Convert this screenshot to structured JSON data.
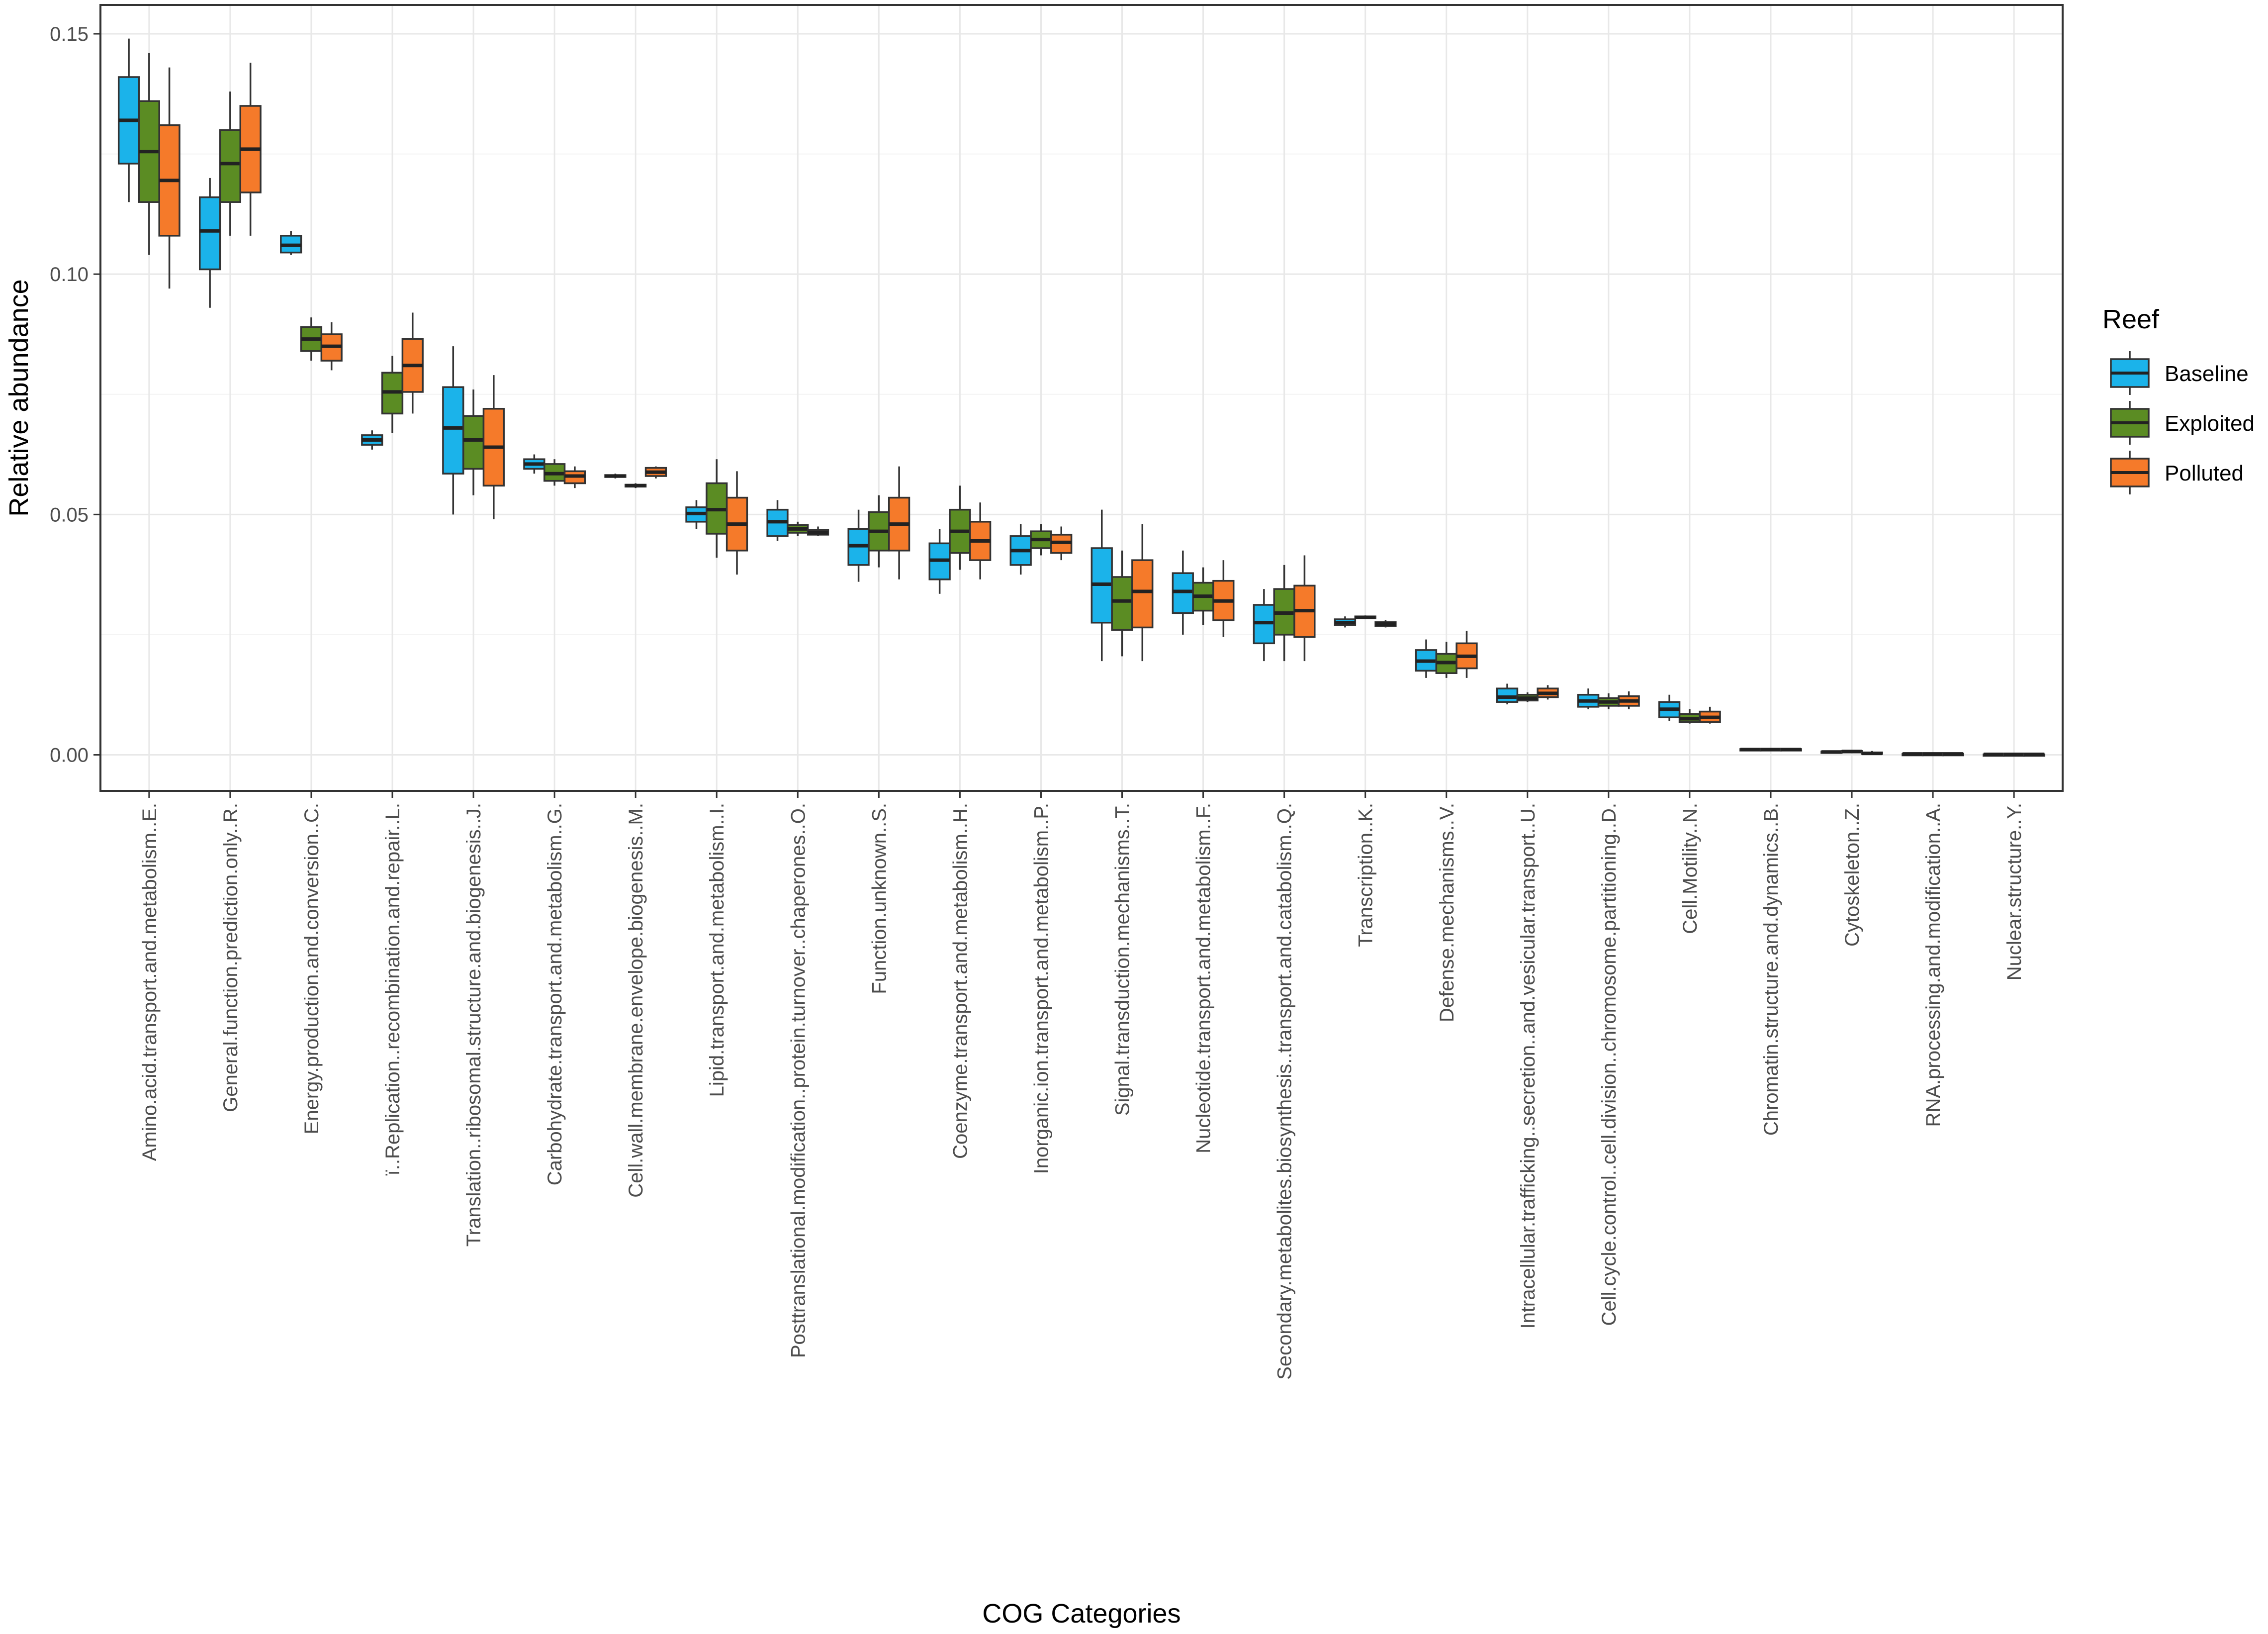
{
  "chart_data": {
    "type": "boxplot",
    "xlabel": "COG Categories",
    "ylabel": "Relative abundance",
    "ylim": [
      -0.0075,
      0.156
    ],
    "yticks": [
      0.0,
      0.05,
      0.1,
      0.15
    ],
    "ytick_labels": [
      "0.00",
      "0.05",
      "0.10",
      "0.15"
    ],
    "grid": true,
    "legend": {
      "title": "Reef",
      "position": "right"
    },
    "series": [
      {
        "name": "Baseline",
        "color": "#1BB3EA"
      },
      {
        "name": "Exploited",
        "color": "#5B8C23"
      },
      {
        "name": "Polluted",
        "color": "#F57A2A"
      }
    ],
    "categories": [
      {
        "label": "Amino.acid.transport.and.metabolism..E.",
        "boxes": [
          {
            "series": "Baseline",
            "min": 0.115,
            "q1": 0.123,
            "median": 0.132,
            "q3": 0.141,
            "max": 0.149
          },
          {
            "series": "Exploited",
            "min": 0.104,
            "q1": 0.115,
            "median": 0.1255,
            "q3": 0.136,
            "max": 0.146
          },
          {
            "series": "Polluted",
            "min": 0.097,
            "q1": 0.108,
            "median": 0.1195,
            "q3": 0.131,
            "max": 0.143
          }
        ]
      },
      {
        "label": "General.function.prediction.only..R.",
        "boxes": [
          {
            "series": "Baseline",
            "min": 0.093,
            "q1": 0.101,
            "median": 0.109,
            "q3": 0.116,
            "max": 0.12
          },
          {
            "series": "Exploited",
            "min": 0.108,
            "q1": 0.115,
            "median": 0.123,
            "q3": 0.13,
            "max": 0.138
          },
          {
            "series": "Polluted",
            "min": 0.108,
            "q1": 0.117,
            "median": 0.126,
            "q3": 0.135,
            "max": 0.144
          }
        ]
      },
      {
        "label": "Energy.production.and.conversion..C.",
        "boxes": [
          {
            "series": "Baseline",
            "min": 0.104,
            "q1": 0.1045,
            "median": 0.106,
            "q3": 0.108,
            "max": 0.109
          },
          {
            "series": "Exploited",
            "min": 0.082,
            "q1": 0.084,
            "median": 0.0865,
            "q3": 0.089,
            "max": 0.091
          },
          {
            "series": "Polluted",
            "min": 0.08,
            "q1": 0.082,
            "median": 0.085,
            "q3": 0.0875,
            "max": 0.09
          }
        ]
      },
      {
        "label": "ï..Replication..recombination.and.repair..L.",
        "boxes": [
          {
            "series": "Baseline",
            "min": 0.0635,
            "q1": 0.0645,
            "median": 0.0655,
            "q3": 0.0665,
            "max": 0.0675
          },
          {
            "series": "Exploited",
            "min": 0.067,
            "q1": 0.071,
            "median": 0.0755,
            "q3": 0.0795,
            "max": 0.083
          },
          {
            "series": "Polluted",
            "min": 0.071,
            "q1": 0.0755,
            "median": 0.081,
            "q3": 0.0865,
            "max": 0.092
          }
        ]
      },
      {
        "label": "Translation..ribosomal.structure.and.biogenesis..J.",
        "boxes": [
          {
            "series": "Baseline",
            "min": 0.05,
            "q1": 0.0585,
            "median": 0.068,
            "q3": 0.0765,
            "max": 0.085
          },
          {
            "series": "Exploited",
            "min": 0.054,
            "q1": 0.0595,
            "median": 0.0655,
            "q3": 0.0705,
            "max": 0.076
          },
          {
            "series": "Polluted",
            "min": 0.049,
            "q1": 0.056,
            "median": 0.064,
            "q3": 0.072,
            "max": 0.079
          }
        ]
      },
      {
        "label": "Carbohydrate.transport.and.metabolism..G.",
        "boxes": [
          {
            "series": "Baseline",
            "min": 0.0585,
            "q1": 0.0595,
            "median": 0.0605,
            "q3": 0.0615,
            "max": 0.0625
          },
          {
            "series": "Exploited",
            "min": 0.056,
            "q1": 0.057,
            "median": 0.0585,
            "q3": 0.0605,
            "max": 0.0615
          },
          {
            "series": "Polluted",
            "min": 0.0555,
            "q1": 0.0565,
            "median": 0.058,
            "q3": 0.059,
            "max": 0.06
          }
        ]
      },
      {
        "label": "Cell.wall.membrane.envelope.biogenesis..M.",
        "boxes": [
          {
            "series": "Baseline",
            "min": 0.0575,
            "q1": 0.0578,
            "median": 0.058,
            "q3": 0.0582,
            "max": 0.0585
          },
          {
            "series": "Exploited",
            "min": 0.0555,
            "q1": 0.0558,
            "median": 0.056,
            "q3": 0.0562,
            "max": 0.0565
          },
          {
            "series": "Polluted",
            "min": 0.0575,
            "q1": 0.058,
            "median": 0.0588,
            "q3": 0.0597,
            "max": 0.06
          }
        ]
      },
      {
        "label": "Lipid.transport.and.metabolism..I.",
        "boxes": [
          {
            "series": "Baseline",
            "min": 0.047,
            "q1": 0.0485,
            "median": 0.0502,
            "q3": 0.0515,
            "max": 0.053
          },
          {
            "series": "Exploited",
            "min": 0.041,
            "q1": 0.046,
            "median": 0.051,
            "q3": 0.0565,
            "max": 0.0615
          },
          {
            "series": "Polluted",
            "min": 0.0375,
            "q1": 0.0425,
            "median": 0.048,
            "q3": 0.0535,
            "max": 0.059
          }
        ]
      },
      {
        "label": "Posttranslational.modification..protein.turnover..chaperones..O.",
        "boxes": [
          {
            "series": "Baseline",
            "min": 0.0445,
            "q1": 0.0455,
            "median": 0.0485,
            "q3": 0.051,
            "max": 0.053
          },
          {
            "series": "Exploited",
            "min": 0.0455,
            "q1": 0.0462,
            "median": 0.047,
            "q3": 0.0478,
            "max": 0.0485
          },
          {
            "series": "Polluted",
            "min": 0.0455,
            "q1": 0.0458,
            "median": 0.0462,
            "q3": 0.0468,
            "max": 0.0475
          }
        ]
      },
      {
        "label": "Function.unknown..S.",
        "boxes": [
          {
            "series": "Baseline",
            "min": 0.036,
            "q1": 0.0395,
            "median": 0.0435,
            "q3": 0.047,
            "max": 0.051
          },
          {
            "series": "Exploited",
            "min": 0.039,
            "q1": 0.0425,
            "median": 0.0465,
            "q3": 0.0505,
            "max": 0.054
          },
          {
            "series": "Polluted",
            "min": 0.0365,
            "q1": 0.0425,
            "median": 0.048,
            "q3": 0.0535,
            "max": 0.06
          }
        ]
      },
      {
        "label": "Coenzyme.transport.and.metabolism..H.",
        "boxes": [
          {
            "series": "Baseline",
            "min": 0.0335,
            "q1": 0.0365,
            "median": 0.0405,
            "q3": 0.044,
            "max": 0.047
          },
          {
            "series": "Exploited",
            "min": 0.0385,
            "q1": 0.042,
            "median": 0.0465,
            "q3": 0.051,
            "max": 0.056
          },
          {
            "series": "Polluted",
            "min": 0.0365,
            "q1": 0.0405,
            "median": 0.0445,
            "q3": 0.0485,
            "max": 0.0525
          }
        ]
      },
      {
        "label": "Inorganic.ion.transport.and.metabolism..P.",
        "boxes": [
          {
            "series": "Baseline",
            "min": 0.0375,
            "q1": 0.0395,
            "median": 0.0425,
            "q3": 0.0455,
            "max": 0.048
          },
          {
            "series": "Exploited",
            "min": 0.0415,
            "q1": 0.043,
            "median": 0.0448,
            "q3": 0.0465,
            "max": 0.048
          },
          {
            "series": "Polluted",
            "min": 0.0405,
            "q1": 0.042,
            "median": 0.0442,
            "q3": 0.0458,
            "max": 0.0475
          }
        ]
      },
      {
        "label": "Signal.transduction.mechanisms..T.",
        "boxes": [
          {
            "series": "Baseline",
            "min": 0.0195,
            "q1": 0.0275,
            "median": 0.0355,
            "q3": 0.043,
            "max": 0.051
          },
          {
            "series": "Exploited",
            "min": 0.0205,
            "q1": 0.026,
            "median": 0.032,
            "q3": 0.037,
            "max": 0.0425
          },
          {
            "series": "Polluted",
            "min": 0.0195,
            "q1": 0.0265,
            "median": 0.034,
            "q3": 0.0405,
            "max": 0.048
          }
        ]
      },
      {
        "label": "Nucleotide.transport.and.metabolism..F.",
        "boxes": [
          {
            "series": "Baseline",
            "min": 0.025,
            "q1": 0.0295,
            "median": 0.034,
            "q3": 0.0378,
            "max": 0.0425
          },
          {
            "series": "Exploited",
            "min": 0.027,
            "q1": 0.03,
            "median": 0.033,
            "q3": 0.0358,
            "max": 0.039
          },
          {
            "series": "Polluted",
            "min": 0.0245,
            "q1": 0.028,
            "median": 0.032,
            "q3": 0.0362,
            "max": 0.0405
          }
        ]
      },
      {
        "label": "Secondary.metabolites.biosynthesis..transport.and.catabolism..Q.",
        "boxes": [
          {
            "series": "Baseline",
            "min": 0.0195,
            "q1": 0.0232,
            "median": 0.0275,
            "q3": 0.0312,
            "max": 0.0345
          },
          {
            "series": "Exploited",
            "min": 0.0195,
            "q1": 0.025,
            "median": 0.0295,
            "q3": 0.0345,
            "max": 0.0395
          },
          {
            "series": "Polluted",
            "min": 0.0195,
            "q1": 0.0245,
            "median": 0.03,
            "q3": 0.0352,
            "max": 0.0415
          }
        ]
      },
      {
        "label": "Transcription..K.",
        "boxes": [
          {
            "series": "Baseline",
            "min": 0.0265,
            "q1": 0.027,
            "median": 0.0275,
            "q3": 0.0282,
            "max": 0.0288
          },
          {
            "series": "Exploited",
            "min": 0.0282,
            "q1": 0.0284,
            "median": 0.0286,
            "q3": 0.0288,
            "max": 0.029
          },
          {
            "series": "Polluted",
            "min": 0.0265,
            "q1": 0.0268,
            "median": 0.0272,
            "q3": 0.0276,
            "max": 0.028
          }
        ]
      },
      {
        "label": "Defense.mechanisms..V.",
        "boxes": [
          {
            "series": "Baseline",
            "min": 0.016,
            "q1": 0.0175,
            "median": 0.0195,
            "q3": 0.0218,
            "max": 0.024
          },
          {
            "series": "Exploited",
            "min": 0.016,
            "q1": 0.017,
            "median": 0.0192,
            "q3": 0.021,
            "max": 0.0235
          },
          {
            "series": "Polluted",
            "min": 0.016,
            "q1": 0.018,
            "median": 0.0205,
            "q3": 0.0232,
            "max": 0.0258
          }
        ]
      },
      {
        "label": "Intracellular.trafficking..secretion..and.vesicular.transport..U.",
        "boxes": [
          {
            "series": "Baseline",
            "min": 0.0105,
            "q1": 0.011,
            "median": 0.012,
            "q3": 0.0138,
            "max": 0.0148
          },
          {
            "series": "Exploited",
            "min": 0.011,
            "q1": 0.0113,
            "median": 0.0118,
            "q3": 0.0125,
            "max": 0.013
          },
          {
            "series": "Polluted",
            "min": 0.0115,
            "q1": 0.012,
            "median": 0.0128,
            "q3": 0.0138,
            "max": 0.0145
          }
        ]
      },
      {
        "label": "Cell.cycle.control..cell.division..chromosome.partitioning..D.",
        "boxes": [
          {
            "series": "Baseline",
            "min": 0.0095,
            "q1": 0.01,
            "median": 0.0112,
            "q3": 0.0125,
            "max": 0.0138
          },
          {
            "series": "Exploited",
            "min": 0.0095,
            "q1": 0.0102,
            "median": 0.011,
            "q3": 0.0118,
            "max": 0.0128
          },
          {
            "series": "Polluted",
            "min": 0.0095,
            "q1": 0.0102,
            "median": 0.0112,
            "q3": 0.0122,
            "max": 0.0132
          }
        ]
      },
      {
        "label": "Cell.Motility..N.",
        "boxes": [
          {
            "series": "Baseline",
            "min": 0.007,
            "q1": 0.0078,
            "median": 0.0095,
            "q3": 0.011,
            "max": 0.0125
          },
          {
            "series": "Exploited",
            "min": 0.0065,
            "q1": 0.0068,
            "median": 0.0075,
            "q3": 0.0085,
            "max": 0.0095
          },
          {
            "series": "Polluted",
            "min": 0.0065,
            "q1": 0.0068,
            "median": 0.0078,
            "q3": 0.009,
            "max": 0.01
          }
        ]
      },
      {
        "label": "Chromatin.structure.and.dynamics..B.",
        "boxes": [
          {
            "series": "Baseline",
            "min": 0.0009,
            "q1": 0.001,
            "median": 0.0011,
            "q3": 0.0012,
            "max": 0.0013
          },
          {
            "series": "Exploited",
            "min": 0.0009,
            "q1": 0.001,
            "median": 0.0011,
            "q3": 0.0012,
            "max": 0.0013
          },
          {
            "series": "Polluted",
            "min": 0.0009,
            "q1": 0.001,
            "median": 0.0011,
            "q3": 0.0012,
            "max": 0.0013
          }
        ]
      },
      {
        "label": "Cytoskeleton..Z.",
        "boxes": [
          {
            "series": "Baseline",
            "min": 0.0004,
            "q1": 0.0005,
            "median": 0.0006,
            "q3": 0.0007,
            "max": 0.0008
          },
          {
            "series": "Exploited",
            "min": 0.0005,
            "q1": 0.0006,
            "median": 0.0007,
            "q3": 0.0008,
            "max": 0.0009
          },
          {
            "series": "Polluted",
            "min": 0.0001,
            "q1": 0.0002,
            "median": 0.0003,
            "q3": 0.0005,
            "max": 0.0008
          }
        ]
      },
      {
        "label": "RNA.processing.and.modification..A.",
        "boxes": [
          {
            "series": "Baseline",
            "min": 0.0001,
            "q1": 0.0001,
            "median": 0.0002,
            "q3": 0.0002,
            "max": 0.0003
          },
          {
            "series": "Exploited",
            "min": 0.0001,
            "q1": 0.0001,
            "median": 0.0002,
            "q3": 0.0002,
            "max": 0.0003
          },
          {
            "series": "Polluted",
            "min": 0.0001,
            "q1": 0.0001,
            "median": 0.0002,
            "q3": 0.0002,
            "max": 0.0003
          }
        ]
      },
      {
        "label": "Nuclear.structure..Y.",
        "boxes": [
          {
            "series": "Baseline",
            "min": 0.0,
            "q1": 0.0,
            "median": 0.0001,
            "q3": 0.0001,
            "max": 0.0002
          },
          {
            "series": "Exploited",
            "min": 0.0,
            "q1": 0.0,
            "median": 0.0001,
            "q3": 0.0001,
            "max": 0.0002
          },
          {
            "series": "Polluted",
            "min": 0.0,
            "q1": 0.0,
            "median": 0.0001,
            "q3": 0.0001,
            "max": 0.0002
          }
        ]
      }
    ]
  }
}
